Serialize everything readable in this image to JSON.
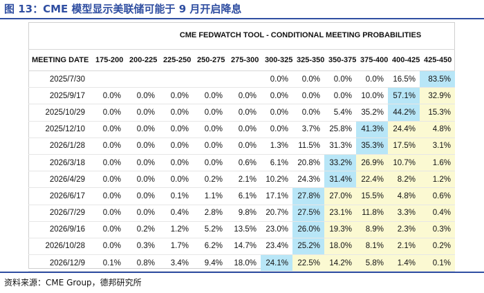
{
  "figure_title": "图 13：CME 模型显示美联储可能于 9 月开启降息",
  "table_title": "CME FEDWATCH TOOL - CONDITIONAL MEETING PROBABILITIES",
  "columns": [
    "MEETING DATE",
    "175-200",
    "200-225",
    "225-250",
    "250-275",
    "275-300",
    "300-325",
    "325-350",
    "350-375",
    "375-400",
    "400-425",
    "425-450"
  ],
  "rows": [
    {
      "date": "2025/7/30",
      "values": [
        "",
        "",
        "",
        "",
        "",
        "0.0%",
        "0.0%",
        "0.0%",
        "0.0%",
        "16.5%",
        "83.5%"
      ]
    },
    {
      "date": "2025/9/17",
      "values": [
        "0.0%",
        "0.0%",
        "0.0%",
        "0.0%",
        "0.0%",
        "0.0%",
        "0.0%",
        "0.0%",
        "10.0%",
        "57.1%",
        "32.9%"
      ]
    },
    {
      "date": "2025/10/29",
      "values": [
        "0.0%",
        "0.0%",
        "0.0%",
        "0.0%",
        "0.0%",
        "0.0%",
        "0.0%",
        "5.4%",
        "35.2%",
        "44.2%",
        "15.3%"
      ]
    },
    {
      "date": "2025/12/10",
      "values": [
        "0.0%",
        "0.0%",
        "0.0%",
        "0.0%",
        "0.0%",
        "0.0%",
        "3.7%",
        "25.8%",
        "41.3%",
        "24.4%",
        "4.8%"
      ]
    },
    {
      "date": "2026/1/28",
      "values": [
        "0.0%",
        "0.0%",
        "0.0%",
        "0.0%",
        "0.0%",
        "1.3%",
        "11.5%",
        "31.3%",
        "35.3%",
        "17.5%",
        "3.1%"
      ]
    },
    {
      "date": "2026/3/18",
      "values": [
        "0.0%",
        "0.0%",
        "0.0%",
        "0.0%",
        "0.6%",
        "6.1%",
        "20.8%",
        "33.2%",
        "26.9%",
        "10.7%",
        "1.6%"
      ]
    },
    {
      "date": "2026/4/29",
      "values": [
        "0.0%",
        "0.0%",
        "0.0%",
        "0.2%",
        "2.1%",
        "10.2%",
        "24.3%",
        "31.4%",
        "22.4%",
        "8.2%",
        "1.2%"
      ]
    },
    {
      "date": "2026/6/17",
      "values": [
        "0.0%",
        "0.0%",
        "0.1%",
        "1.1%",
        "6.1%",
        "17.1%",
        "27.8%",
        "27.0%",
        "15.5%",
        "4.8%",
        "0.6%"
      ]
    },
    {
      "date": "2026/7/29",
      "values": [
        "0.0%",
        "0.0%",
        "0.4%",
        "2.8%",
        "9.8%",
        "20.7%",
        "27.5%",
        "23.1%",
        "11.8%",
        "3.3%",
        "0.4%"
      ]
    },
    {
      "date": "2026/9/16",
      "values": [
        "0.0%",
        "0.2%",
        "1.2%",
        "5.2%",
        "13.5%",
        "23.0%",
        "26.0%",
        "19.3%",
        "8.9%",
        "2.3%",
        "0.3%"
      ]
    },
    {
      "date": "2026/10/28",
      "values": [
        "0.0%",
        "0.3%",
        "1.7%",
        "6.2%",
        "14.7%",
        "23.4%",
        "25.2%",
        "18.0%",
        "8.1%",
        "2.1%",
        "0.2%"
      ]
    },
    {
      "date": "2026/12/9",
      "values": [
        "0.1%",
        "0.8%",
        "3.4%",
        "9.4%",
        "18.0%",
        "24.1%",
        "22.5%",
        "14.2%",
        "5.8%",
        "1.4%",
        "0.1%"
      ]
    }
  ],
  "highlight": {
    "max_index": [
      10,
      9,
      9,
      8,
      8,
      7,
      7,
      6,
      6,
      6,
      6,
      5
    ],
    "colors": {
      "max": "#b8e6f7",
      "above": "#fbf9d2"
    }
  },
  "source": "资料来源：CME Group，德邦研究所"
}
